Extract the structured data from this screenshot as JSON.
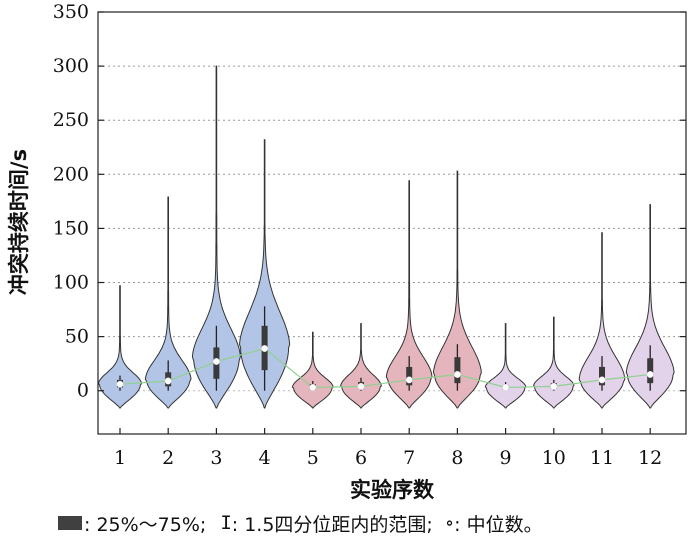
{
  "chart_data": {
    "type": "violin",
    "xlabel": "实验序数",
    "ylabel": "冲突持续时间/s",
    "ylim": [
      -40,
      350
    ],
    "yticks": [
      0,
      50,
      100,
      150,
      200,
      250,
      300,
      350
    ],
    "categories": [
      "1",
      "2",
      "3",
      "4",
      "5",
      "6",
      "7",
      "8",
      "9",
      "10",
      "11",
      "12"
    ],
    "grid": "horizontal dotted",
    "series": [
      {
        "category": "1",
        "color": "#b3c5e6",
        "min": 0,
        "q1": 3,
        "median": 6,
        "q3": 10,
        "whisker_high": 14,
        "max": 97,
        "mode": 6,
        "mode_halfwidth_ratio": 0.85
      },
      {
        "category": "2",
        "color": "#b3c5e6",
        "min": 0,
        "q1": 4,
        "median": 9,
        "q3": 17,
        "whisker_high": 28,
        "max": 179,
        "mode": 10,
        "mode_halfwidth_ratio": 0.9
      },
      {
        "category": "3",
        "color": "#b3c5e6",
        "min": 0,
        "q1": 11,
        "median": 27,
        "q3": 40,
        "whisker_high": 60,
        "max": 300,
        "mode": 30,
        "mode_halfwidth_ratio": 0.95
      },
      {
        "category": "4",
        "color": "#b3c5e6",
        "min": 0,
        "q1": 19,
        "median": 39,
        "q3": 60,
        "whisker_high": 78,
        "max": 232,
        "mode": 40,
        "mode_halfwidth_ratio": 1.0
      },
      {
        "category": "5",
        "color": "#e5b5bd",
        "min": 0,
        "q1": 1,
        "median": 3,
        "q3": 6,
        "whisker_high": 9,
        "max": 54,
        "mode": 3,
        "mode_halfwidth_ratio": 0.8
      },
      {
        "category": "6",
        "color": "#e5b5bd",
        "min": 0,
        "q1": 2,
        "median": 4,
        "q3": 8,
        "whisker_high": 12,
        "max": 62,
        "mode": 4,
        "mode_halfwidth_ratio": 0.8
      },
      {
        "category": "7",
        "color": "#e5b5bd",
        "min": 0,
        "q1": 5,
        "median": 10,
        "q3": 22,
        "whisker_high": 32,
        "max": 194,
        "mode": 12,
        "mode_halfwidth_ratio": 0.9
      },
      {
        "category": "8",
        "color": "#e5b5bd",
        "min": 0,
        "q1": 7,
        "median": 15,
        "q3": 31,
        "whisker_high": 43,
        "max": 203,
        "mode": 15,
        "mode_halfwidth_ratio": 0.95
      },
      {
        "category": "9",
        "color": "#e2d3ea",
        "min": 0,
        "q1": 1,
        "median": 3,
        "q3": 5,
        "whisker_high": 8,
        "max": 62,
        "mode": 3,
        "mode_halfwidth_ratio": 0.8
      },
      {
        "category": "10",
        "color": "#e2d3ea",
        "min": 0,
        "q1": 2,
        "median": 4,
        "q3": 7,
        "whisker_high": 10,
        "max": 68,
        "mode": 4,
        "mode_halfwidth_ratio": 0.8
      },
      {
        "category": "11",
        "color": "#e2d3ea",
        "min": 0,
        "q1": 5,
        "median": 10,
        "q3": 22,
        "whisker_high": 32,
        "max": 146,
        "mode": 10,
        "mode_halfwidth_ratio": 0.9
      },
      {
        "category": "12",
        "color": "#e2d3ea",
        "min": 0,
        "q1": 7,
        "median": 15,
        "q3": 30,
        "whisker_high": 42,
        "max": 172,
        "mode": 15,
        "mode_halfwidth_ratio": 0.95
      }
    ],
    "median_line_color": "#90d090",
    "legend": {
      "box_text": ": 25%～75%;",
      "whisker_symbol": "I",
      "whisker_text": ": 1.5四分位距内的范围;",
      "median_symbol": "∘",
      "median_text": ": 中位数。"
    }
  }
}
